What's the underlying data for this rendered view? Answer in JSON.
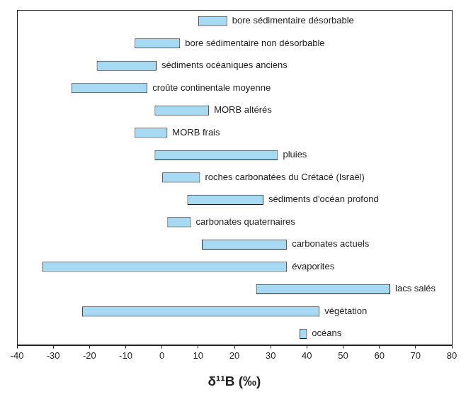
{
  "chart_data": {
    "type": "bar",
    "orientation": "horizontal",
    "x_label": "δ¹¹B (‰)",
    "categories": [
      "bore sédimentaire désorbable",
      "bore sédimentaire non désorbable",
      "sédiments océaniques anciens",
      "croûte continentale moyenne",
      "MORB altérés",
      "MORB frais",
      "pluies",
      "roches carbonatées du Crétacé (Israël)",
      "sédiments d'océan profond",
      "carbonates quaternaires",
      "carbonates actuels",
      "évaporites",
      "lacs salés",
      "végétation",
      "océans"
    ],
    "values": [
      [
        10,
        18
      ],
      [
        -7.5,
        5
      ],
      [
        -18,
        -1.5
      ],
      [
        -25,
        -4
      ],
      [
        -2,
        13
      ],
      [
        -7.5,
        1.5
      ],
      [
        -2,
        32
      ],
      [
        0,
        10.5
      ],
      [
        7,
        28
      ],
      [
        1.5,
        8
      ],
      [
        11,
        34.5
      ],
      [
        -33,
        34.5
      ],
      [
        26,
        63
      ],
      [
        -22,
        43.5
      ],
      [
        38,
        40
      ]
    ],
    "color": "#a6d9f2",
    "xlim": [
      -40,
      80
    ],
    "xticks": [
      -40,
      -30,
      -20,
      -10,
      0,
      10,
      20,
      30,
      40,
      50,
      60,
      70,
      80
    ],
    "grid": false,
    "tick_labels": "x"
  }
}
